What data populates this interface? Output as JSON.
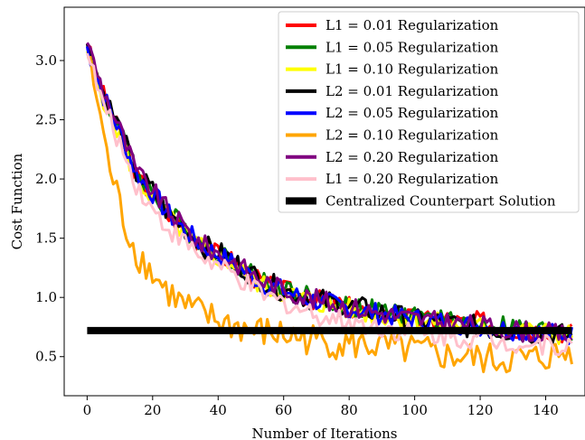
{
  "chart_data": {
    "type": "line",
    "title": "",
    "xlabel": "Number of Iterations",
    "ylabel": "Cost Function",
    "xlim": [
      -7,
      152
    ],
    "ylim": [
      0.17,
      3.45
    ],
    "xticks": [
      0,
      20,
      40,
      60,
      80,
      100,
      120,
      140
    ],
    "yticks": [
      0.5,
      1.0,
      1.5,
      2.0,
      2.5,
      3.0
    ],
    "xtick_labels": [
      "0",
      "20",
      "40",
      "60",
      "80",
      "100",
      "120",
      "140"
    ],
    "ytick_labels": [
      "0.5",
      "1.0",
      "1.5",
      "2.0",
      "2.5",
      "3.0"
    ],
    "grid": false,
    "legend_position": "top-right",
    "series": [
      {
        "name": "L1 = 0.01 Regularization",
        "color": "#ff0000",
        "x": [
          0,
          5,
          10,
          15,
          20,
          25,
          30,
          35,
          40,
          45,
          50,
          55,
          60,
          65,
          70,
          75,
          80,
          85,
          90,
          95,
          100,
          105,
          110,
          115,
          120,
          125,
          130,
          135,
          140,
          145,
          148
        ],
        "y": [
          3.12,
          2.7,
          2.38,
          2.02,
          1.86,
          1.68,
          1.56,
          1.43,
          1.36,
          1.3,
          1.18,
          1.1,
          1.06,
          1.02,
          0.98,
          0.95,
          0.92,
          0.88,
          0.87,
          0.85,
          0.82,
          0.8,
          0.82,
          0.78,
          0.8,
          0.76,
          0.74,
          0.72,
          0.74,
          0.71,
          0.7
        ]
      },
      {
        "name": "L1 = 0.05 Regularization",
        "color": "#008000",
        "x": [
          0,
          5,
          10,
          15,
          20,
          25,
          30,
          35,
          40,
          45,
          50,
          55,
          60,
          65,
          70,
          75,
          80,
          85,
          90,
          95,
          100,
          105,
          110,
          115,
          120,
          125,
          130,
          135,
          140,
          145,
          148
        ],
        "y": [
          3.1,
          2.72,
          2.4,
          2.05,
          1.88,
          1.72,
          1.58,
          1.46,
          1.38,
          1.3,
          1.2,
          1.12,
          1.08,
          1.02,
          1.0,
          0.96,
          0.93,
          0.9,
          0.88,
          0.85,
          0.84,
          0.82,
          0.8,
          0.79,
          0.78,
          0.77,
          0.75,
          0.73,
          0.72,
          0.71,
          0.7
        ]
      },
      {
        "name": "L1 = 0.10 Regularization",
        "color": "#ffff00",
        "x": [
          0,
          5,
          10,
          15,
          20,
          25,
          30,
          35,
          40,
          45,
          50,
          55,
          60,
          65,
          70,
          75,
          80,
          85,
          90,
          95,
          100,
          105,
          110,
          115,
          120,
          125,
          130,
          135,
          140,
          145,
          148
        ],
        "y": [
          3.08,
          2.68,
          2.36,
          2.0,
          1.84,
          1.66,
          1.54,
          1.42,
          1.34,
          1.28,
          1.16,
          1.08,
          1.04,
          1.0,
          0.96,
          0.93,
          0.9,
          0.87,
          0.85,
          0.83,
          0.81,
          0.79,
          0.78,
          0.76,
          0.75,
          0.74,
          0.72,
          0.71,
          0.7,
          0.69,
          0.68
        ]
      },
      {
        "name": "L2 = 0.01 Regularization",
        "color": "#000000",
        "x": [
          0,
          5,
          10,
          15,
          20,
          25,
          30,
          35,
          40,
          45,
          50,
          55,
          60,
          65,
          70,
          75,
          80,
          85,
          90,
          95,
          100,
          105,
          110,
          115,
          120,
          125,
          130,
          135,
          140,
          145,
          148
        ],
        "y": [
          3.14,
          2.72,
          2.42,
          2.04,
          1.9,
          1.7,
          1.58,
          1.44,
          1.38,
          1.3,
          1.2,
          1.12,
          1.06,
          1.02,
          0.98,
          0.96,
          0.92,
          0.9,
          0.87,
          0.84,
          0.8,
          0.8,
          0.78,
          0.76,
          0.75,
          0.72,
          0.72,
          0.7,
          0.7,
          0.68,
          0.67
        ]
      },
      {
        "name": "L2 = 0.05 Regularization",
        "color": "#0000ff",
        "x": [
          0,
          5,
          10,
          15,
          20,
          25,
          30,
          35,
          40,
          45,
          50,
          55,
          60,
          65,
          70,
          75,
          80,
          85,
          90,
          95,
          100,
          105,
          110,
          115,
          120,
          125,
          130,
          135,
          140,
          145,
          148
        ],
        "y": [
          3.12,
          2.7,
          2.4,
          2.04,
          1.88,
          1.7,
          1.56,
          1.44,
          1.36,
          1.28,
          1.18,
          1.1,
          1.06,
          1.0,
          0.97,
          0.94,
          0.91,
          0.88,
          0.86,
          0.84,
          0.82,
          0.8,
          0.79,
          0.77,
          0.76,
          0.74,
          0.73,
          0.71,
          0.7,
          0.69,
          0.68
        ]
      },
      {
        "name": "L2 = 0.10 Regularization",
        "color": "#ffa500",
        "x": [
          0,
          3,
          6,
          9,
          12,
          15,
          18,
          21,
          25,
          30,
          35,
          40,
          45,
          50,
          55,
          60,
          65,
          70,
          75,
          80,
          85,
          90,
          95,
          100,
          105,
          110,
          115,
          120,
          125,
          130,
          135,
          140,
          145,
          148
        ],
        "y": [
          3.02,
          2.7,
          2.2,
          1.88,
          1.58,
          1.38,
          1.28,
          1.16,
          1.04,
          0.92,
          0.86,
          0.8,
          0.76,
          0.72,
          0.7,
          0.68,
          0.66,
          0.64,
          0.62,
          0.6,
          0.6,
          0.58,
          0.56,
          0.55,
          0.53,
          0.5,
          0.5,
          0.48,
          0.47,
          0.48,
          0.47,
          0.5,
          0.52,
          0.54
        ]
      },
      {
        "name": "L2 = 0.20 Regularization",
        "color": "#800080",
        "x": [
          0,
          5,
          10,
          15,
          20,
          25,
          30,
          35,
          40,
          45,
          50,
          55,
          60,
          65,
          70,
          75,
          80,
          85,
          90,
          95,
          100,
          105,
          110,
          115,
          120,
          125,
          130,
          135,
          140,
          145,
          148
        ],
        "y": [
          3.15,
          2.74,
          2.42,
          2.06,
          1.9,
          1.72,
          1.58,
          1.45,
          1.37,
          1.3,
          1.2,
          1.12,
          1.07,
          1.02,
          0.98,
          0.95,
          0.92,
          0.89,
          0.87,
          0.84,
          0.82,
          0.8,
          0.79,
          0.77,
          0.76,
          0.74,
          0.73,
          0.71,
          0.7,
          0.69,
          0.68
        ]
      },
      {
        "name": "L1 = 0.20 Regularization",
        "color": "#ffc0cb",
        "x": [
          0,
          5,
          10,
          15,
          20,
          25,
          30,
          35,
          40,
          45,
          50,
          55,
          60,
          65,
          70,
          75,
          80,
          85,
          90,
          95,
          100,
          105,
          110,
          115,
          120,
          125,
          130,
          135,
          140,
          145,
          148
        ],
        "y": [
          3.06,
          2.62,
          2.3,
          1.96,
          1.74,
          1.58,
          1.46,
          1.34,
          1.26,
          1.18,
          1.08,
          1.0,
          0.96,
          0.9,
          0.86,
          0.82,
          0.8,
          0.77,
          0.75,
          0.72,
          0.7,
          0.68,
          0.68,
          0.66,
          0.65,
          0.63,
          0.62,
          0.61,
          0.6,
          0.6,
          0.59
        ]
      },
      {
        "name": "Centralized Counterpart Solution",
        "color": "#000000",
        "x": [
          0,
          148
        ],
        "y": [
          0.72,
          0.72
        ]
      }
    ]
  }
}
